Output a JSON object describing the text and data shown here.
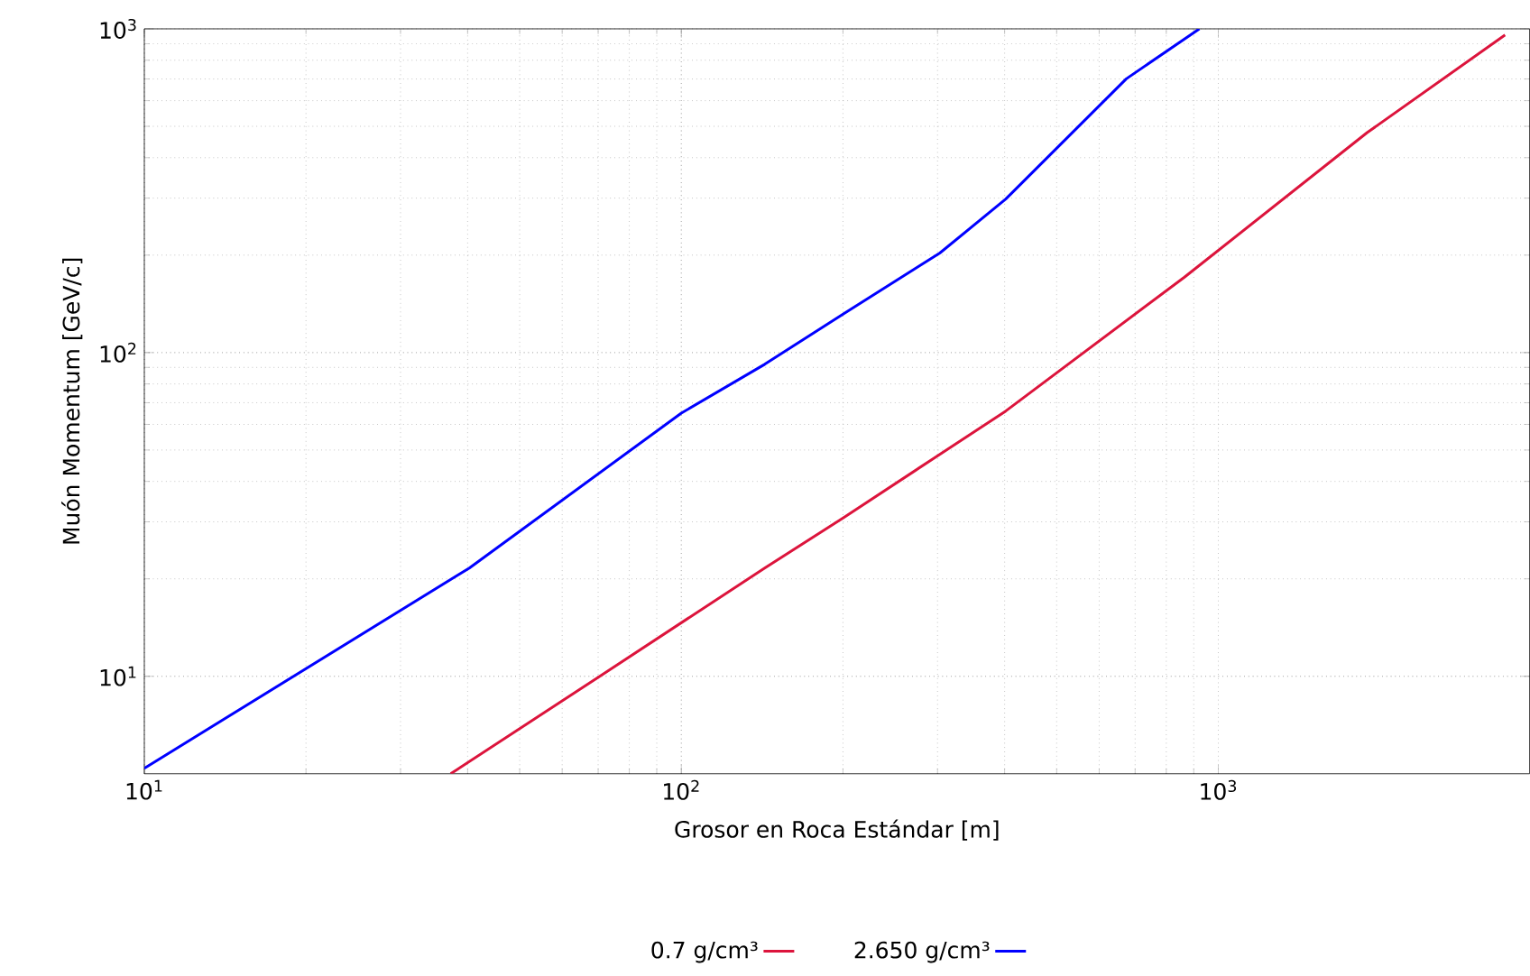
{
  "chart_data": {
    "type": "line",
    "xlabel": "Grosor en Roca Estándar [m]",
    "ylabel": "Muón Momentum [GeV/c]",
    "log": "xy",
    "grid": true,
    "legend": "bottom",
    "marker": "none",
    "line_style": "solid",
    "xlim": [
      10,
      3800
    ],
    "ylim": [
      5,
      1000
    ],
    "xticks": [
      {
        "value": 10,
        "label": "10$^{1}$"
      },
      {
        "value": 100,
        "label": "10$^{2}$"
      },
      {
        "value": 1000,
        "label": "10$^{3}$"
      }
    ],
    "yticks": [
      {
        "value": 10,
        "label": "10$^{1}$"
      },
      {
        "value": 100,
        "label": "10$^{2}$"
      },
      {
        "value": 1000,
        "label": "10$^{3}$"
      }
    ],
    "series": [
      {
        "name": "0.7 g/cm³",
        "color": "#dc143c",
        "x": [
          37.2,
          70.5,
          143,
          201,
          402,
          865,
          1893,
          3420
        ],
        "values": [
          5.0,
          10,
          21.6,
          31,
          66,
          171,
          478,
          957
        ]
      },
      {
        "name": "2.650 g/cm³",
        "color": "#0000ff",
        "x": [
          10,
          40.3,
          100,
          143,
          201,
          303,
          402,
          674,
          922
        ],
        "values": [
          5.2,
          21.6,
          65,
          92,
          132,
          203,
          298,
          701,
          1000
        ]
      }
    ]
  }
}
